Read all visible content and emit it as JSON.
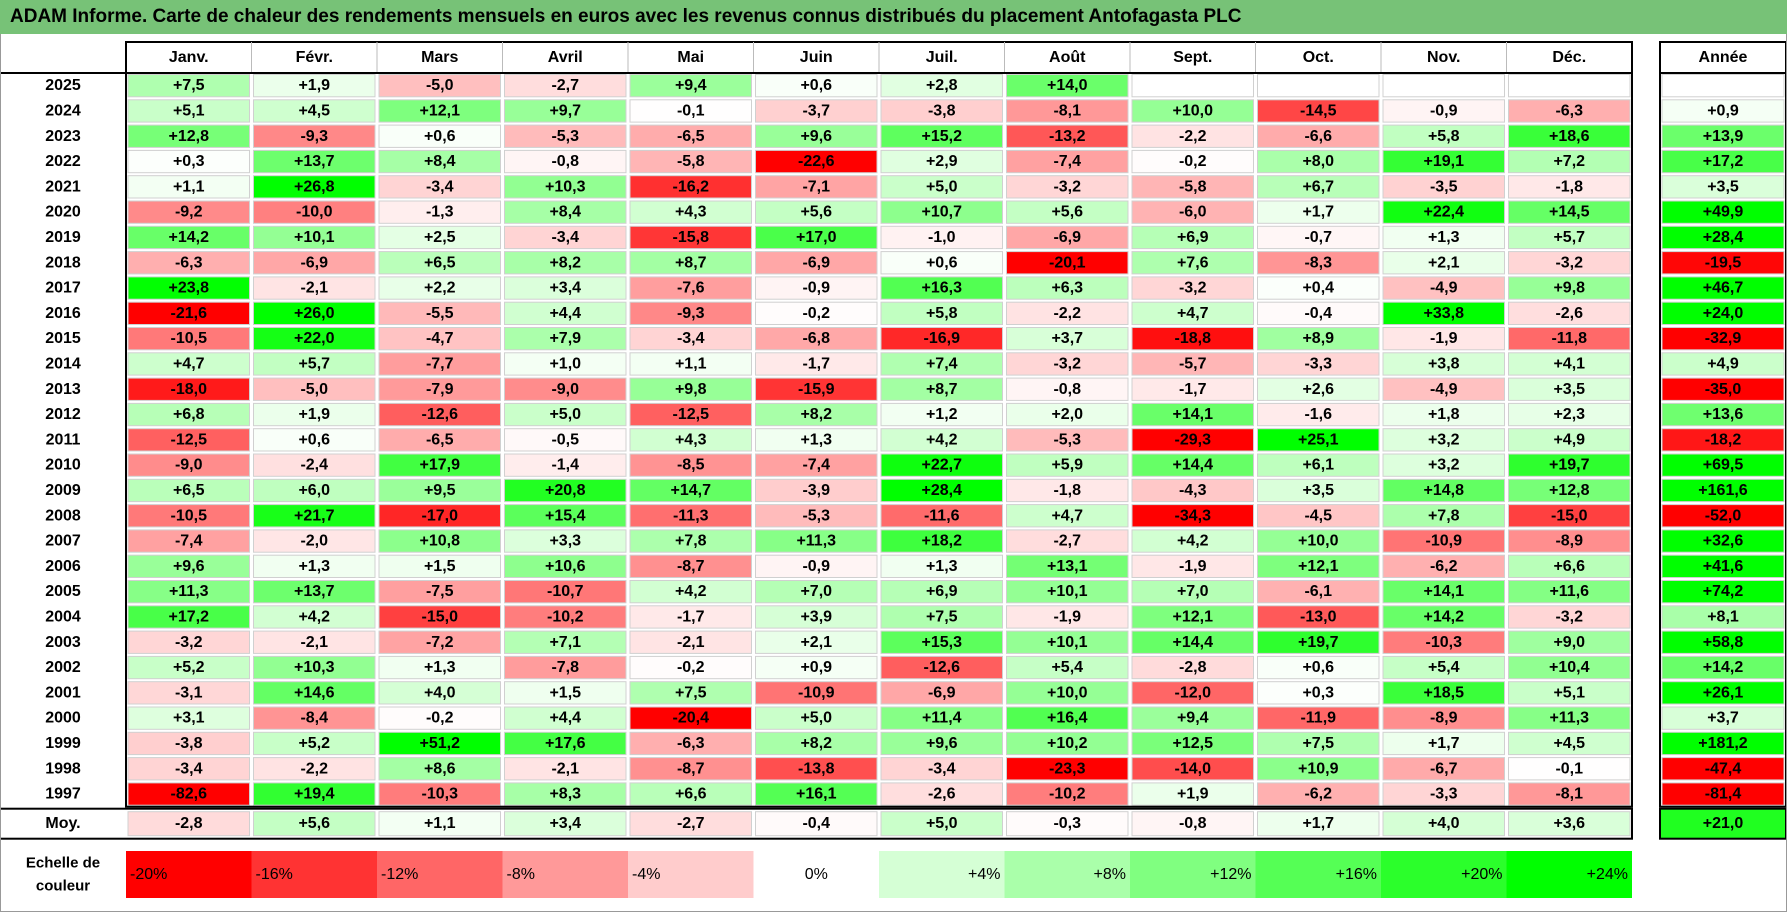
{
  "title": "ADAM Informe. Carte de chaleur des rendements mensuels en euros avec les revenus connus distribués du placement Antofagasta PLC",
  "chart_data": {
    "type": "heatmap",
    "months": [
      "Janv.",
      "Févr.",
      "Mars",
      "Avril",
      "Mai",
      "Juin",
      "Juil.",
      "Août",
      "Sept.",
      "Oct.",
      "Nov.",
      "Déc."
    ],
    "year_header": "Année",
    "rows": [
      {
        "year": "2025",
        "values": [
          "+7,5",
          "+1,9",
          "-5,0",
          "-2,7",
          "+9,4",
          "+0,6",
          "+2,8",
          "+14,0",
          "",
          "",
          "",
          ""
        ],
        "annual": ""
      },
      {
        "year": "2024",
        "values": [
          "+5,1",
          "+4,5",
          "+12,1",
          "+9,7",
          "-0,1",
          "-3,7",
          "-3,8",
          "-8,1",
          "+10,0",
          "-14,5",
          "-0,9",
          "-6,3"
        ],
        "annual": "+0,9"
      },
      {
        "year": "2023",
        "values": [
          "+12,8",
          "-9,3",
          "+0,6",
          "-5,3",
          "-6,5",
          "+9,6",
          "+15,2",
          "-13,2",
          "-2,2",
          "-6,6",
          "+5,8",
          "+18,6"
        ],
        "annual": "+13,9"
      },
      {
        "year": "2022",
        "values": [
          "+0,3",
          "+13,7",
          "+8,4",
          "-0,8",
          "-5,8",
          "-22,6",
          "+2,9",
          "-7,4",
          "-0,2",
          "+8,0",
          "+19,1",
          "+7,2"
        ],
        "annual": "+17,2"
      },
      {
        "year": "2021",
        "values": [
          "+1,1",
          "+26,8",
          "-3,4",
          "+10,3",
          "-16,2",
          "-7,1",
          "+5,0",
          "-3,2",
          "-5,8",
          "+6,7",
          "-3,5",
          "-1,8"
        ],
        "annual": "+3,5"
      },
      {
        "year": "2020",
        "values": [
          "-9,2",
          "-10,0",
          "-1,3",
          "+8,4",
          "+4,3",
          "+5,6",
          "+10,7",
          "+5,6",
          "-6,0",
          "+1,7",
          "+22,4",
          "+14,5"
        ],
        "annual": "+49,9"
      },
      {
        "year": "2019",
        "values": [
          "+14,2",
          "+10,1",
          "+2,5",
          "-3,4",
          "-15,8",
          "+17,0",
          "-1,0",
          "-6,9",
          "+6,9",
          "-0,7",
          "+1,3",
          "+5,7"
        ],
        "annual": "+28,4"
      },
      {
        "year": "2018",
        "values": [
          "-6,3",
          "-6,9",
          "+6,5",
          "+8,2",
          "+8,7",
          "-6,9",
          "+0,6",
          "-20,1",
          "+7,6",
          "-8,3",
          "+2,1",
          "-3,2"
        ],
        "annual": "-19,5"
      },
      {
        "year": "2017",
        "values": [
          "+23,8",
          "-2,1",
          "+2,2",
          "+3,4",
          "-7,6",
          "-0,9",
          "+16,3",
          "+6,3",
          "-3,2",
          "+0,4",
          "-4,9",
          "+9,8"
        ],
        "annual": "+46,7"
      },
      {
        "year": "2016",
        "values": [
          "-21,6",
          "+26,0",
          "-5,5",
          "+4,4",
          "-9,3",
          "-0,2",
          "+5,8",
          "-2,2",
          "+4,7",
          "-0,4",
          "+33,8",
          "-2,6"
        ],
        "annual": "+24,0"
      },
      {
        "year": "2015",
        "values": [
          "-10,5",
          "+22,0",
          "-4,7",
          "+7,9",
          "-3,4",
          "-6,8",
          "-16,9",
          "+3,7",
          "-18,8",
          "+8,9",
          "-1,9",
          "-11,8"
        ],
        "annual": "-32,9"
      },
      {
        "year": "2014",
        "values": [
          "+4,7",
          "+5,7",
          "-7,7",
          "+1,0",
          "+1,1",
          "-1,7",
          "+7,4",
          "-3,2",
          "-5,7",
          "-3,3",
          "+3,8",
          "+4,1"
        ],
        "annual": "+4,9"
      },
      {
        "year": "2013",
        "values": [
          "-18,0",
          "-5,0",
          "-7,9",
          "-9,0",
          "+9,8",
          "-15,9",
          "+8,7",
          "-0,8",
          "-1,7",
          "+2,6",
          "-4,9",
          "+3,5"
        ],
        "annual": "-35,0"
      },
      {
        "year": "2012",
        "values": [
          "+6,8",
          "+1,9",
          "-12,6",
          "+5,0",
          "-12,5",
          "+8,2",
          "+1,2",
          "+2,0",
          "+14,1",
          "-1,6",
          "+1,8",
          "+2,3"
        ],
        "annual": "+13,6"
      },
      {
        "year": "2011",
        "values": [
          "-12,5",
          "+0,6",
          "-6,5",
          "-0,5",
          "+4,3",
          "+1,3",
          "+4,2",
          "-5,3",
          "-29,3",
          "+25,1",
          "+3,2",
          "+4,9"
        ],
        "annual": "-18,2"
      },
      {
        "year": "2010",
        "values": [
          "-9,0",
          "-2,4",
          "+17,9",
          "-1,4",
          "-8,5",
          "-7,4",
          "+22,7",
          "+5,9",
          "+14,4",
          "+6,1",
          "+3,2",
          "+19,7"
        ],
        "annual": "+69,5"
      },
      {
        "year": "2009",
        "values": [
          "+6,5",
          "+6,0",
          "+9,5",
          "+20,8",
          "+14,7",
          "-3,9",
          "+28,4",
          "-1,8",
          "-4,3",
          "+3,5",
          "+14,8",
          "+12,8"
        ],
        "annual": "+161,6"
      },
      {
        "year": "2008",
        "values": [
          "-10,5",
          "+21,7",
          "-17,0",
          "+15,4",
          "-11,3",
          "-5,3",
          "-11,6",
          "+4,7",
          "-34,3",
          "-4,5",
          "+7,8",
          "-15,0"
        ],
        "annual": "-52,0"
      },
      {
        "year": "2007",
        "values": [
          "-7,4",
          "-2,0",
          "+10,8",
          "+3,3",
          "+7,8",
          "+11,3",
          "+18,2",
          "-2,7",
          "+4,2",
          "+10,0",
          "-10,9",
          "-8,9"
        ],
        "annual": "+32,6"
      },
      {
        "year": "2006",
        "values": [
          "+9,6",
          "+1,3",
          "+1,5",
          "+10,6",
          "-8,7",
          "-0,9",
          "+1,3",
          "+13,1",
          "-1,9",
          "+12,1",
          "-6,2",
          "+6,6"
        ],
        "annual": "+41,6"
      },
      {
        "year": "2005",
        "values": [
          "+11,3",
          "+13,7",
          "-7,5",
          "-10,7",
          "+4,2",
          "+7,0",
          "+6,9",
          "+10,1",
          "+7,0",
          "-6,1",
          "+14,1",
          "+11,6"
        ],
        "annual": "+74,2"
      },
      {
        "year": "2004",
        "values": [
          "+17,2",
          "+4,2",
          "-15,0",
          "-10,2",
          "-1,7",
          "+3,9",
          "+7,5",
          "-1,9",
          "+12,1",
          "-13,0",
          "+14,2",
          "-3,2"
        ],
        "annual": "+8,1"
      },
      {
        "year": "2003",
        "values": [
          "-3,2",
          "-2,1",
          "-7,2",
          "+7,1",
          "-2,1",
          "+2,1",
          "+15,3",
          "+10,1",
          "+14,4",
          "+19,7",
          "-10,3",
          "+9,0"
        ],
        "annual": "+58,8"
      },
      {
        "year": "2002",
        "values": [
          "+5,2",
          "+10,3",
          "+1,3",
          "-7,8",
          "-0,2",
          "+0,9",
          "-12,6",
          "+5,4",
          "-2,8",
          "+0,6",
          "+5,4",
          "+10,4"
        ],
        "annual": "+14,2"
      },
      {
        "year": "2001",
        "values": [
          "-3,1",
          "+14,6",
          "+4,0",
          "+1,5",
          "+7,5",
          "-10,9",
          "-6,9",
          "+10,0",
          "-12,0",
          "+0,3",
          "+18,5",
          "+5,1"
        ],
        "annual": "+26,1"
      },
      {
        "year": "2000",
        "values": [
          "+3,1",
          "-8,4",
          "-0,2",
          "+4,4",
          "-20,4",
          "+5,0",
          "+11,4",
          "+16,4",
          "+9,4",
          "-11,9",
          "-8,9",
          "+11,3"
        ],
        "annual": "+3,7"
      },
      {
        "year": "1999",
        "values": [
          "-3,8",
          "+5,2",
          "+51,2",
          "+17,6",
          "-6,3",
          "+8,2",
          "+9,6",
          "+10,2",
          "+12,5",
          "+7,5",
          "+1,7",
          "+4,5"
        ],
        "annual": "+181,2"
      },
      {
        "year": "1998",
        "values": [
          "-3,4",
          "-2,2",
          "+8,6",
          "-2,1",
          "-8,7",
          "-13,8",
          "-3,4",
          "-23,3",
          "-14,0",
          "+10,9",
          "-6,7",
          "-0,1"
        ],
        "annual": "-47,4"
      },
      {
        "year": "1997",
        "values": [
          "-82,6",
          "+19,4",
          "-10,3",
          "+8,3",
          "+6,6",
          "+16,1",
          "-2,6",
          "-10,2",
          "+1,9",
          "-6,2",
          "-3,3",
          "-8,1"
        ],
        "annual": "-81,4"
      }
    ],
    "average": {
      "label": "Moy.",
      "values": [
        "-2,8",
        "+5,6",
        "+1,1",
        "+3,4",
        "-2,7",
        "-0,4",
        "+5,0",
        "-0,3",
        "-0,8",
        "+1,7",
        "+4,0",
        "+3,6"
      ],
      "annual": "+21,0"
    },
    "scale": {
      "label_line1": "Echelle de",
      "label_line2": "couleur",
      "steps": [
        {
          "label": "-20%",
          "value": -20
        },
        {
          "label": "-16%",
          "value": -16
        },
        {
          "label": "-12%",
          "value": -12
        },
        {
          "label": "-8%",
          "value": -8
        },
        {
          "label": "-4%",
          "value": -4
        },
        {
          "label": "0%",
          "value": 0
        },
        {
          "label": "+4%",
          "value": 4
        },
        {
          "label": "+8%",
          "value": 8
        },
        {
          "label": "+12%",
          "value": 12
        },
        {
          "label": "+16%",
          "value": 16
        },
        {
          "label": "+20%",
          "value": 20
        },
        {
          "label": "+24%",
          "value": 24
        }
      ]
    },
    "colors": {
      "negative_max": "#ff0000",
      "neutral": "#ffffff",
      "positive_max": "#00ff00",
      "title_background": "#77c277"
    }
  }
}
